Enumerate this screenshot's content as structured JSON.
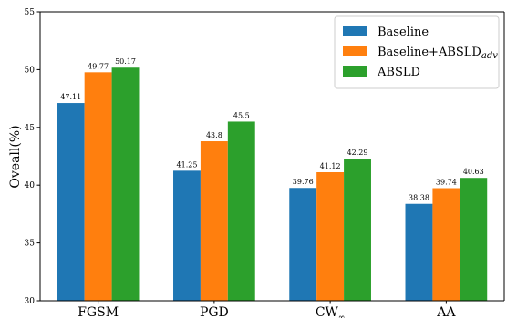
{
  "chart_data": {
    "type": "bar",
    "categories": [
      "FGSM",
      "PGD",
      "CW",
      "AA"
    ],
    "category_subscripts": [
      "",
      "",
      "∞",
      ""
    ],
    "ylabel": "Oveall(%)",
    "xlabel": "",
    "ylim": [
      30,
      55
    ],
    "yticks": [
      30,
      35,
      40,
      45,
      50,
      55
    ],
    "grid": false,
    "legend_position": "top-right",
    "series": [
      {
        "name": "Baseline",
        "name_subscript": "",
        "color": "#1f77b4",
        "values": [
          47.11,
          41.25,
          39.76,
          38.38
        ],
        "labels": [
          "47.11",
          "41.25",
          "39.76",
          "38.38"
        ]
      },
      {
        "name": "Baseline+ABSLD",
        "name_subscript": "adv",
        "color": "#ff7f0e",
        "values": [
          49.77,
          43.8,
          41.12,
          39.74
        ],
        "labels": [
          "49.77",
          "43.8",
          "41.12",
          "39.74"
        ]
      },
      {
        "name": "ABSLD",
        "name_subscript": "",
        "color": "#2ca02c",
        "values": [
          50.17,
          45.5,
          42.29,
          40.63
        ],
        "labels": [
          "50.17",
          "45.5",
          "42.29",
          "40.63"
        ]
      }
    ]
  }
}
